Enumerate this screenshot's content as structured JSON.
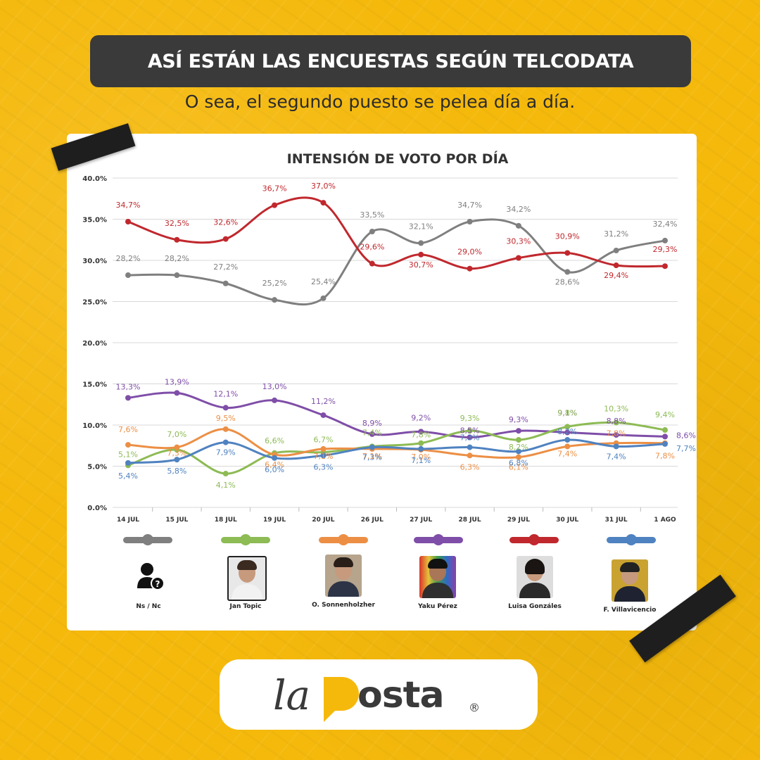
{
  "header": {
    "title": "ASÍ ESTÁN LAS ENCUESTAS SEGÚN TELCODATA",
    "subtitle": "O sea, el segundo puesto se pelea día a día."
  },
  "chart_data": {
    "type": "line",
    "title": "INTENSIÓN DE VOTO POR DÍA",
    "categories": [
      "14 JUL",
      "15 JUL",
      "18 JUL",
      "19 JUL",
      "20 JUL",
      "26 JUL",
      "27 JUL",
      "28 JUL",
      "29 JUL",
      "30 JUL",
      "31 JUL",
      "1 AGO"
    ],
    "y_ticks": [
      "0.0%",
      "5.0%",
      "10.0%",
      "15.0%",
      "20.0%",
      "25.0%",
      "30.0%",
      "35.0%",
      "40.0%"
    ],
    "ylim": [
      0,
      40
    ],
    "grid": true,
    "series": [
      {
        "name": "Ns / Nc",
        "color": "#7f7f7f",
        "values": [
          28.2,
          28.2,
          27.2,
          25.2,
          25.4,
          33.5,
          32.1,
          34.7,
          34.2,
          28.6,
          31.2,
          32.4
        ],
        "labels": [
          "28,2%",
          "28,2%",
          "27,2%",
          "25,2%",
          "25,4%",
          "33,5%",
          "32,1%",
          "34,7%",
          "34,2%",
          "28,6%",
          "31,2%",
          "32,4%"
        ]
      },
      {
        "name": "Luisa Gonzáles",
        "color": "#c0282d",
        "values": [
          34.7,
          32.5,
          32.6,
          36.7,
          37.0,
          29.6,
          30.7,
          29.0,
          30.3,
          30.9,
          29.4,
          29.3
        ],
        "labels": [
          "34,7%",
          "32,5%",
          "32,6%",
          "36,7%",
          "37,0%",
          "29,6%",
          "30,7%",
          "29,0%",
          "30,3%",
          "30,9%",
          "29,4%",
          "29,3%"
        ]
      },
      {
        "name": "Yaku Pérez",
        "color": "#7f4ea8",
        "values": [
          13.3,
          13.9,
          12.1,
          13.0,
          11.2,
          8.9,
          9.2,
          8.5,
          9.3,
          9.1,
          8.8,
          8.6
        ],
        "labels": [
          "13,3%",
          "13,9%",
          "12,1%",
          "13,0%",
          "11,2%",
          "8,9%",
          "9,2%",
          "8,5%",
          "9,3%",
          "9,1%",
          "8,8%",
          "8,6%"
        ]
      },
      {
        "name": "Jan Topic",
        "color": "#8dbb54",
        "values": [
          5.1,
          7.0,
          4.1,
          6.6,
          6.7,
          7.4,
          7.8,
          9.3,
          8.2,
          9.8,
          10.3,
          9.4
        ],
        "labels": [
          "5,1%",
          "7,0%",
          "4,1%",
          "6,6%",
          "6,7%",
          "7,4%",
          "7,8%",
          "9,3%",
          "8,2%",
          "9,8%",
          "10,3%",
          "9,4%"
        ]
      },
      {
        "name": "O. Sonnenholzher",
        "color": "#ec8f45",
        "values": [
          7.6,
          7.3,
          9.5,
          6.4,
          7.1,
          7.1,
          7.0,
          6.3,
          6.1,
          7.4,
          7.8,
          7.8
        ],
        "labels": [
          "7,6%",
          "7,3%",
          "9,5%",
          "6,4%",
          "7,1%",
          "7,1%",
          "7,0%",
          "6,3%",
          "6,1%",
          "7,4%",
          "7,8%",
          "7,8%"
        ]
      },
      {
        "name": "F. Villavicencio",
        "color": "#4f82c0",
        "values": [
          5.4,
          5.8,
          7.9,
          6.0,
          6.3,
          7.3,
          7.1,
          7.3,
          6.8,
          8.2,
          7.4,
          7.7
        ],
        "labels": [
          "5,4%",
          "5,8%",
          "7,9%",
          "6,0%",
          "6,3%",
          "7,3%",
          "7,1%",
          "7,3%",
          "6,8%",
          "8,2%",
          "7,4%",
          "7,7%"
        ]
      }
    ]
  },
  "legend": {
    "order_colors": [
      "#7f7f7f",
      "#8dbb54",
      "#ec8f45",
      "#7f4ea8",
      "#c0282d",
      "#4f82c0"
    ],
    "candidates": [
      {
        "name": "Ns / Nc",
        "icon": "person-question-icon"
      },
      {
        "name": "Jan Topic",
        "icon": "photo-jan-topic"
      },
      {
        "name": "O. Sonnenholzher",
        "icon": "photo-sonnenholzher"
      },
      {
        "name": "Yaku Pérez",
        "icon": "photo-yaku-perez"
      },
      {
        "name": "Luisa Gonzáles",
        "icon": "photo-luisa-gonzales"
      },
      {
        "name": "F. Villavicencio",
        "icon": "photo-villavicencio"
      }
    ]
  },
  "brand": {
    "logo_a": "la",
    "logo_b": "Posta",
    "registered": "®"
  },
  "colors": {
    "background": "#f5b90c",
    "title_bar": "#3a3a3a"
  }
}
